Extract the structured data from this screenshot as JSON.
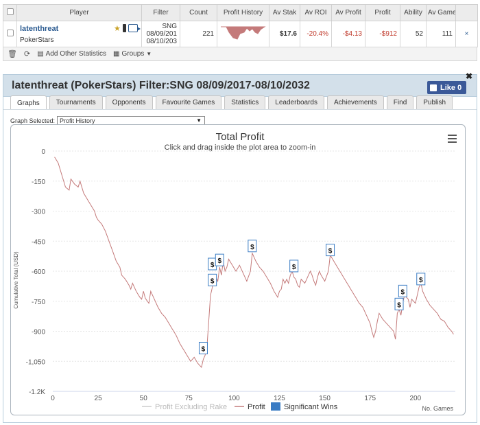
{
  "table": {
    "headers": [
      "Player",
      "Filter",
      "Count",
      "Profit History",
      "Av Stak",
      "Av ROI",
      "Av Profit",
      "Profit",
      "Ability",
      "Av Game"
    ],
    "row": {
      "player_name": "latenthreat",
      "site": "PokerStars",
      "filter_type": "SNG",
      "filter_from": "08/09/201",
      "filter_to": "08/10/203",
      "count": "221",
      "av_stake": "$17.6",
      "av_roi": "-20.4%",
      "av_profit": "-$4.13",
      "profit": "-$912",
      "ability": "52",
      "av_games": "111",
      "row_icons": [
        "award-icon",
        "phone-icon",
        "export-icon"
      ]
    }
  },
  "toolbar": {
    "add_stats": "Add Other Statistics",
    "groups": "Groups"
  },
  "panel": {
    "title": "latenthreat (PokerStars) Filter:SNG 08/09/2017-08/10/2032",
    "like": "Like 0",
    "tabs": [
      "Graphs",
      "Tournaments",
      "Opponents",
      "Favourite Games",
      "Statistics",
      "Leaderboards",
      "Achievements",
      "Find",
      "Publish"
    ],
    "active_tab": "Graphs",
    "graph_selected_label": "Graph Selected:",
    "graph_selected_value": "Profit History"
  },
  "colors": {
    "profit_line": "#c47a7a",
    "rake_line": "#cccccc",
    "significant": "#3a7cc4",
    "header_bg": "#d3e0ea",
    "like_bg": "#3b5998"
  },
  "chart_data": {
    "type": "line",
    "title": "Total Profit",
    "subtitle": "Click and drag inside the plot area to zoom-in",
    "ylabel": "Cumulative Total (USD)",
    "xlabel": "No. Games",
    "xlim": [
      0,
      222
    ],
    "ylim": [
      -1200,
      0
    ],
    "x_ticks": [
      0,
      25,
      50,
      75,
      100,
      125,
      150,
      175,
      200
    ],
    "y_ticks": [
      0,
      -150,
      -300,
      -450,
      -600,
      -750,
      -900,
      -1050,
      -1200
    ],
    "y_tick_labels": [
      "0",
      "-150",
      "-300",
      "-450",
      "-600",
      "-750",
      "-900",
      "-1,050",
      "-1.2K"
    ],
    "legend": [
      "Profit Excluding Rake",
      "Profit",
      "Significant Wins"
    ],
    "legend_position": "bottom",
    "series": [
      {
        "name": "Profit",
        "points": [
          [
            1,
            -30
          ],
          [
            3,
            -60
          ],
          [
            5,
            -120
          ],
          [
            7,
            -180
          ],
          [
            9,
            -195
          ],
          [
            10,
            -140
          ],
          [
            12,
            -165
          ],
          [
            14,
            -180
          ],
          [
            15,
            -150
          ],
          [
            17,
            -210
          ],
          [
            19,
            -240
          ],
          [
            21,
            -270
          ],
          [
            23,
            -300
          ],
          [
            24,
            -330
          ],
          [
            25,
            -345
          ],
          [
            27,
            -365
          ],
          [
            29,
            -400
          ],
          [
            31,
            -450
          ],
          [
            33,
            -500
          ],
          [
            35,
            -550
          ],
          [
            37,
            -580
          ],
          [
            38,
            -620
          ],
          [
            40,
            -640
          ],
          [
            42,
            -670
          ],
          [
            43,
            -690
          ],
          [
            44,
            -660
          ],
          [
            46,
            -700
          ],
          [
            48,
            -730
          ],
          [
            49,
            -740
          ],
          [
            50,
            -700
          ],
          [
            51,
            -735
          ],
          [
            53,
            -760
          ],
          [
            54,
            -700
          ],
          [
            56,
            -740
          ],
          [
            58,
            -780
          ],
          [
            60,
            -810
          ],
          [
            62,
            -830
          ],
          [
            64,
            -860
          ],
          [
            66,
            -890
          ],
          [
            68,
            -920
          ],
          [
            70,
            -960
          ],
          [
            72,
            -990
          ],
          [
            74,
            -1020
          ],
          [
            76,
            -1050
          ],
          [
            78,
            -1030
          ],
          [
            80,
            -1060
          ],
          [
            82,
            -1080
          ],
          [
            83,
            -1040
          ],
          [
            84,
            -1020
          ],
          [
            85,
            -980
          ],
          [
            86,
            -850
          ],
          [
            87,
            -720
          ],
          [
            88,
            -680
          ],
          [
            89,
            -620
          ],
          [
            90,
            -630
          ],
          [
            91,
            -650
          ],
          [
            92,
            -580
          ],
          [
            93,
            -620
          ],
          [
            94,
            -550
          ],
          [
            95,
            -600
          ],
          [
            96,
            -580
          ],
          [
            97,
            -540
          ],
          [
            99,
            -570
          ],
          [
            101,
            -600
          ],
          [
            103,
            -570
          ],
          [
            105,
            -610
          ],
          [
            107,
            -650
          ],
          [
            109,
            -600
          ],
          [
            110,
            -510
          ],
          [
            112,
            -550
          ],
          [
            114,
            -580
          ],
          [
            116,
            -600
          ],
          [
            118,
            -630
          ],
          [
            120,
            -660
          ],
          [
            122,
            -700
          ],
          [
            124,
            -730
          ],
          [
            125,
            -700
          ],
          [
            126,
            -690
          ],
          [
            127,
            -640
          ],
          [
            128,
            -660
          ],
          [
            129,
            -640
          ],
          [
            130,
            -660
          ],
          [
            131,
            -620
          ],
          [
            132,
            -600
          ],
          [
            133,
            -630
          ],
          [
            134,
            -640
          ],
          [
            135,
            -670
          ],
          [
            136,
            -680
          ],
          [
            137,
            -640
          ],
          [
            138,
            -650
          ],
          [
            139,
            -660
          ],
          [
            140,
            -640
          ],
          [
            141,
            -620
          ],
          [
            142,
            -600
          ],
          [
            143,
            -620
          ],
          [
            144,
            -650
          ],
          [
            145,
            -670
          ],
          [
            146,
            -630
          ],
          [
            147,
            -600
          ],
          [
            148,
            -620
          ],
          [
            150,
            -650
          ],
          [
            152,
            -600
          ],
          [
            153,
            -520
          ],
          [
            155,
            -550
          ],
          [
            157,
            -580
          ],
          [
            159,
            -610
          ],
          [
            161,
            -640
          ],
          [
            163,
            -670
          ],
          [
            165,
            -700
          ],
          [
            167,
            -730
          ],
          [
            169,
            -760
          ],
          [
            171,
            -780
          ],
          [
            173,
            -820
          ],
          [
            175,
            -860
          ],
          [
            176,
            -900
          ],
          [
            177,
            -930
          ],
          [
            178,
            -900
          ],
          [
            179,
            -850
          ],
          [
            180,
            -810
          ],
          [
            182,
            -840
          ],
          [
            184,
            -860
          ],
          [
            186,
            -880
          ],
          [
            188,
            -900
          ],
          [
            189,
            -940
          ],
          [
            190,
            -810
          ],
          [
            191,
            -790
          ],
          [
            192,
            -820
          ],
          [
            193,
            -760
          ],
          [
            194,
            -720
          ],
          [
            196,
            -740
          ],
          [
            197,
            -780
          ],
          [
            198,
            -740
          ],
          [
            199,
            -750
          ],
          [
            200,
            -760
          ],
          [
            201,
            -720
          ],
          [
            202,
            -680
          ],
          [
            203,
            -660
          ],
          [
            204,
            -700
          ],
          [
            206,
            -740
          ],
          [
            208,
            -770
          ],
          [
            210,
            -790
          ],
          [
            212,
            -810
          ],
          [
            214,
            -840
          ],
          [
            216,
            -850
          ],
          [
            218,
            -880
          ],
          [
            220,
            -900
          ],
          [
            221,
            -915
          ]
        ]
      }
    ],
    "significant_wins": [
      [
        83,
        -1020
      ],
      [
        88,
        -680
      ],
      [
        88,
        -600
      ],
      [
        92,
        -580
      ],
      [
        110,
        -510
      ],
      [
        133,
        -610
      ],
      [
        153,
        -530
      ],
      [
        191,
        -800
      ],
      [
        193,
        -735
      ],
      [
        203,
        -675
      ]
    ]
  }
}
